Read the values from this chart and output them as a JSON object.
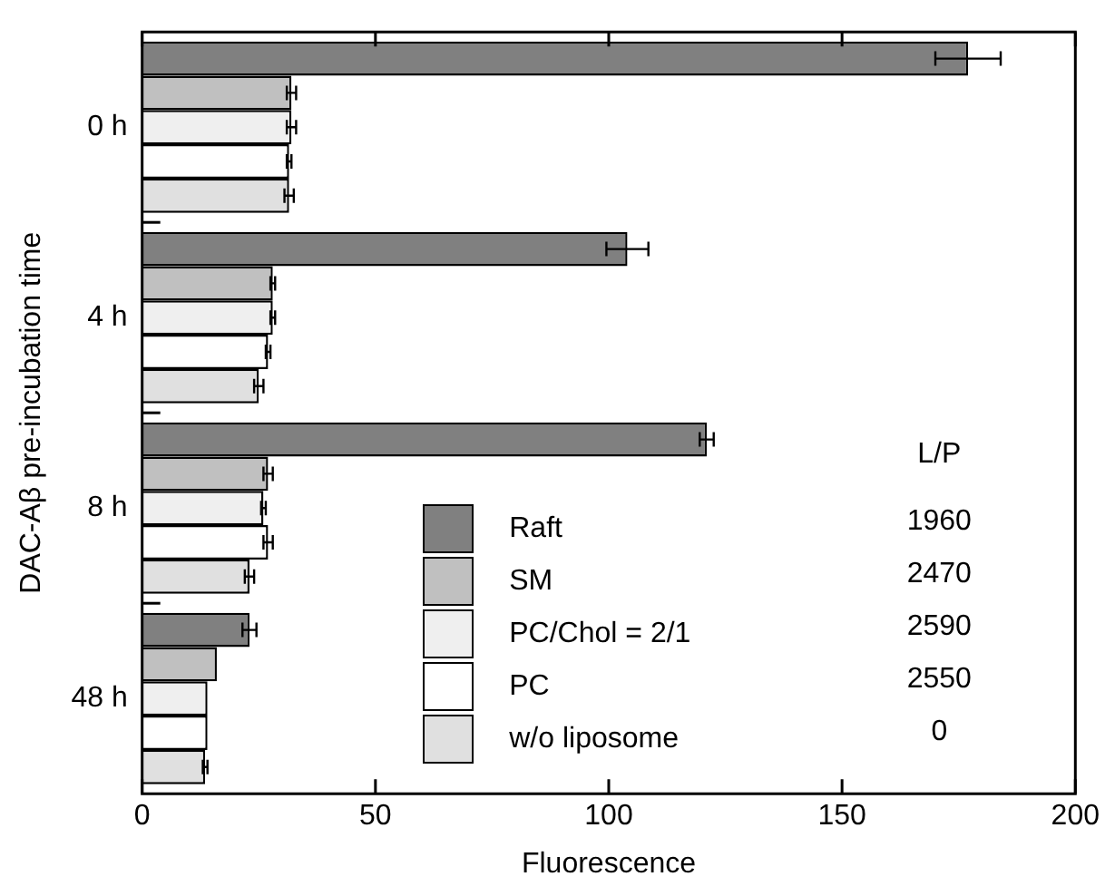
{
  "chart_data": {
    "type": "bar",
    "orientation": "horizontal",
    "xlabel": "Fluorescence",
    "ylabel": "DAC-Aβ pre-incubation time",
    "categories": [
      "0 h",
      "4 h",
      "8 h",
      "48 h"
    ],
    "series": [
      {
        "name": "Raft",
        "color": "#808080",
        "values": [
          177,
          104,
          121,
          23
        ],
        "errors": [
          7,
          4.5,
          1.5,
          1.5
        ]
      },
      {
        "name": "SM",
        "color": "#c0c0c0",
        "values": [
          32,
          28,
          27,
          16
        ],
        "errors": [
          1,
          0.5,
          1,
          null
        ]
      },
      {
        "name": "PC/Chol = 2/1",
        "color": "#efefef",
        "values": [
          32,
          28,
          26,
          14
        ],
        "errors": [
          1,
          0.5,
          0.5,
          null
        ]
      },
      {
        "name": "PC",
        "color": "#ffffff",
        "values": [
          31.5,
          27,
          27,
          14
        ],
        "errors": [
          0.5,
          0.5,
          1,
          null
        ]
      },
      {
        "name": "w/o liposome",
        "color": "#e0e0e0",
        "values": [
          31.5,
          25,
          23,
          13.5
        ],
        "errors": [
          1,
          1,
          1,
          0.5
        ]
      }
    ],
    "xlim": [
      0,
      200
    ],
    "xticks": [
      0,
      50,
      100,
      150,
      200
    ],
    "legend": "bottom",
    "grid": false,
    "annotations": [
      "L/P",
      "1960",
      "2470",
      "2590",
      "2550",
      "0"
    ]
  }
}
